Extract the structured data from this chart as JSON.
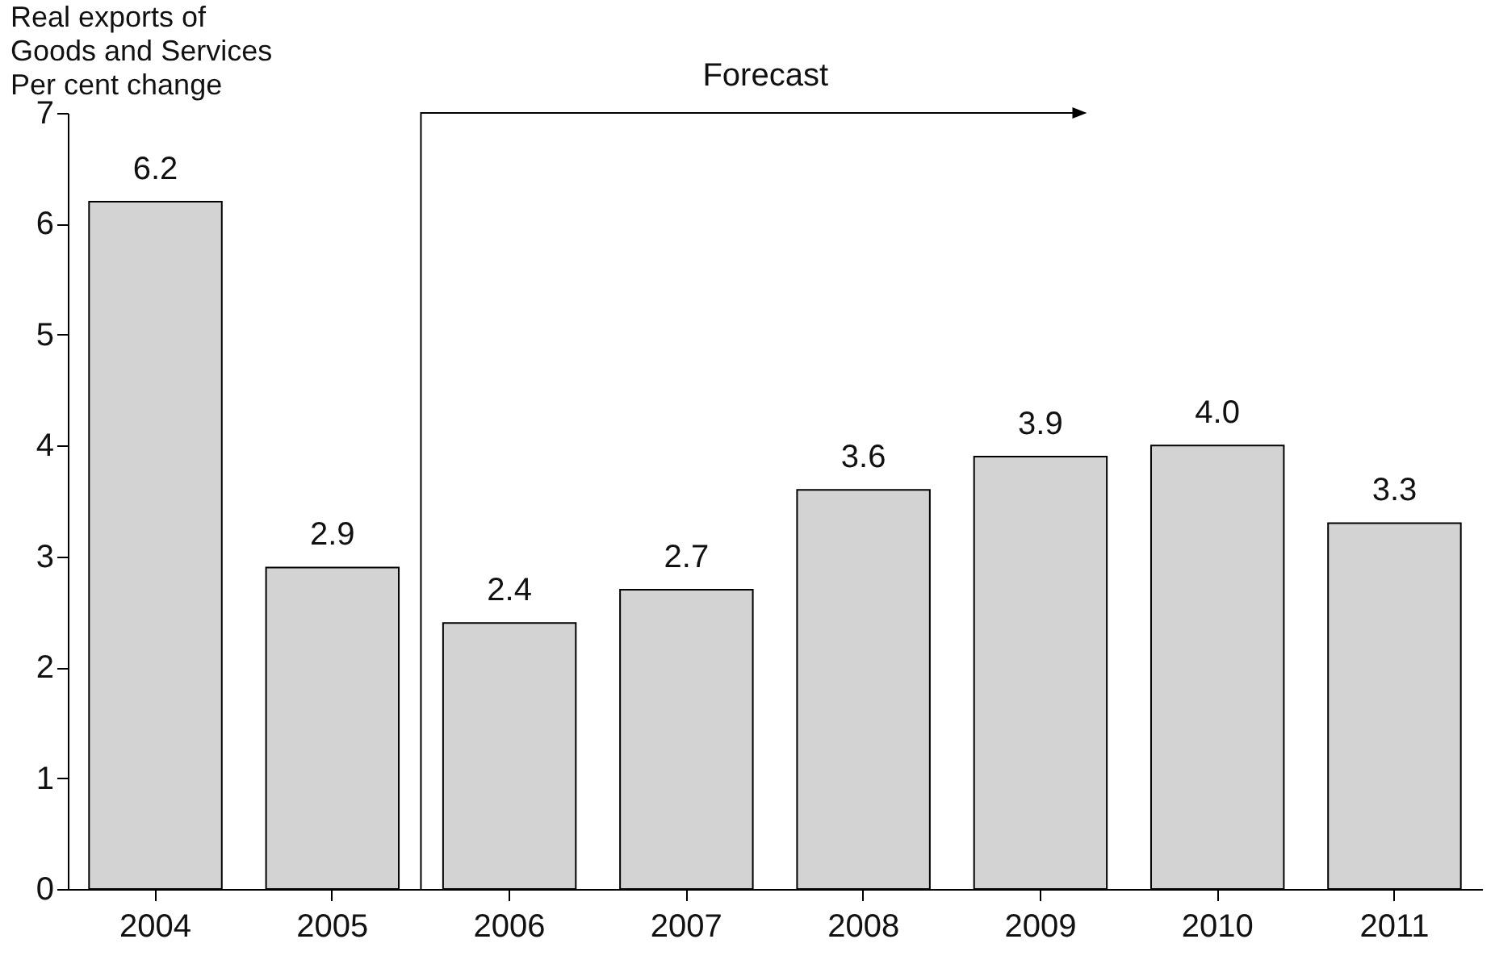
{
  "chart_data": {
    "type": "bar",
    "ylabel": "Real exports of\nGoods and Services\nPer cent change",
    "categories": [
      "2004",
      "2005",
      "2006",
      "2007",
      "2008",
      "2009",
      "2010",
      "2011"
    ],
    "values": [
      6.2,
      2.9,
      2.4,
      2.7,
      3.6,
      3.9,
      4.0,
      3.3
    ],
    "color": "#d3d3d3",
    "ylim": [
      0,
      7
    ],
    "yticks": [
      0,
      1,
      2,
      3,
      4,
      5,
      6,
      7
    ],
    "value_labels": [
      "6.2",
      "2.9",
      "2.4",
      "2.7",
      "3.6",
      "3.9",
      "4.0",
      "3.3"
    ],
    "grid": false,
    "annotations": [
      "Forecast"
    ]
  }
}
